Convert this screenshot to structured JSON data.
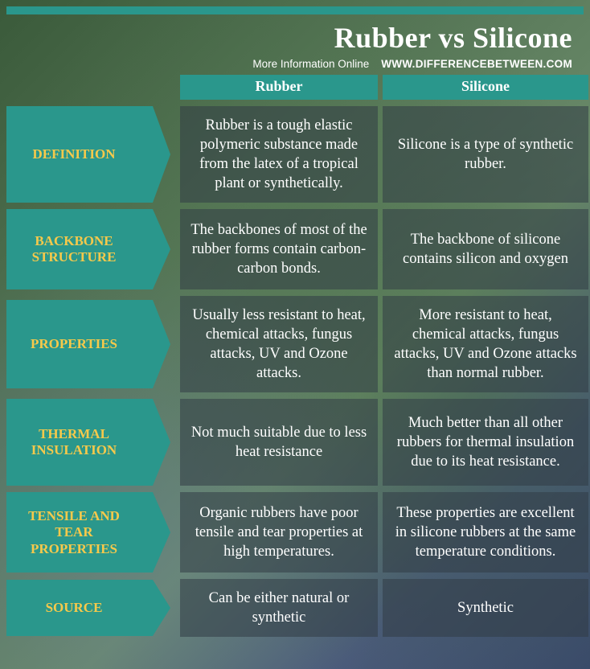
{
  "header": {
    "title": "Rubber vs Silicone",
    "more_info": "More Information  Online",
    "site": "www.DifferenceBetween.com"
  },
  "columns": {
    "left": "Rubber",
    "right": "Silicone"
  },
  "colors": {
    "accent": "#2a978c",
    "label_text": "#f6c94b",
    "cell_bg": "rgba(50,60,70,0.55)",
    "text": "#ffffff"
  },
  "rows": [
    {
      "label": "DEFINITION",
      "rubber": "Rubber is a tough elastic polymeric substance made from the latex of a tropical plant or synthetically.",
      "silicone": "Silicone is a type of synthetic rubber."
    },
    {
      "label": "BACKBONE STRUCTURE",
      "rubber": "The backbones of most of the rubber forms contain carbon-carbon bonds.",
      "silicone": "The backbone of silicone contains silicon and oxygen"
    },
    {
      "label": "PROPERTIES",
      "rubber": "Usually less resistant to heat, chemical attacks, fungus attacks, UV and Ozone attacks.",
      "silicone": "More resistant to heat, chemical attacks, fungus attacks, UV and Ozone attacks than normal rubber."
    },
    {
      "label": "THERMAL INSULATION",
      "rubber": "Not much suitable due to less heat resistance",
      "silicone": "Much better than all other rubbers for thermal insulation due to its heat resistance."
    },
    {
      "label": "TENSILE AND TEAR PROPERTIES",
      "rubber": "Organic rubbers have poor tensile and tear properties at high temperatures.",
      "silicone": "These properties are excellent in silicone rubbers at the same temperature conditions."
    },
    {
      "label": "SOURCE",
      "rubber": "Can be either natural or synthetic",
      "silicone": "Synthetic"
    }
  ]
}
